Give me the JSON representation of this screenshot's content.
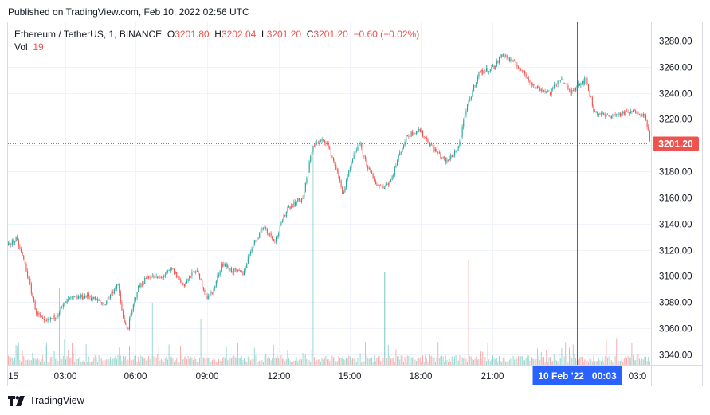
{
  "published": "Published on TradingView.com, Feb 10, 2022 02:56 UTC",
  "legend": {
    "symbol": "Ethereum / TetherUS, 1, BINANCE",
    "o_label": "O",
    "o_value": "3201.80",
    "h_label": "H",
    "h_value": "3202.04",
    "l_label": "L",
    "l_value": "3201.20",
    "c_label": "C",
    "c_value": "3201.20",
    "change": "−0.60 (−0.02%)",
    "vol_label": "Vol",
    "vol_value": "19"
  },
  "footer": {
    "brand": "TradingView",
    "logo_icon": "tradingview-logo-icon"
  },
  "colors": {
    "up": "#26a69a",
    "down": "#ef5350",
    "crosshair": "#2962ff",
    "price_tag": "#ef5350"
  },
  "chart_data": {
    "type": "candlestick",
    "title": "Ethereum / TetherUS, 1, BINANCE",
    "x_ticks": [
      ":15",
      "03:00",
      "06:00",
      "09:00",
      "12:00",
      "15:00",
      "18:00",
      "21:00",
      "03:0"
    ],
    "y_ticks": [
      "3040.00",
      "3060.00",
      "3080.00",
      "3100.00",
      "3120.00",
      "3140.00",
      "3160.00",
      "3180.00",
      "3200.00",
      "3220.00",
      "3240.00",
      "3260.00",
      "3280.00"
    ],
    "ylim": [
      3032,
      3294
    ],
    "last_price": 3201.2,
    "last_price_label": "3201.20",
    "crosshair_label": "10 Feb '22   00:03",
    "grid": true,
    "path": [
      [
        0,
        3124
      ],
      [
        10,
        3128
      ],
      [
        20,
        3111
      ],
      [
        35,
        3072
      ],
      [
        45,
        3064
      ],
      [
        60,
        3070
      ],
      [
        75,
        3082
      ],
      [
        100,
        3085
      ],
      [
        120,
        3078
      ],
      [
        137,
        3094
      ],
      [
        145,
        3064
      ],
      [
        150,
        3060
      ],
      [
        162,
        3090
      ],
      [
        175,
        3100
      ],
      [
        190,
        3098
      ],
      [
        205,
        3105
      ],
      [
        220,
        3093
      ],
      [
        235,
        3105
      ],
      [
        250,
        3083
      ],
      [
        258,
        3090
      ],
      [
        268,
        3110
      ],
      [
        280,
        3104
      ],
      [
        295,
        3102
      ],
      [
        305,
        3122
      ],
      [
        320,
        3138
      ],
      [
        335,
        3127
      ],
      [
        350,
        3152
      ],
      [
        370,
        3160
      ],
      [
        382,
        3200
      ],
      [
        398,
        3204
      ],
      [
        410,
        3185
      ],
      [
        420,
        3163
      ],
      [
        432,
        3189
      ],
      [
        440,
        3202
      ],
      [
        450,
        3185
      ],
      [
        460,
        3171
      ],
      [
        470,
        3168
      ],
      [
        480,
        3173
      ],
      [
        490,
        3192
      ],
      [
        500,
        3207
      ],
      [
        515,
        3212
      ],
      [
        530,
        3200
      ],
      [
        550,
        3187
      ],
      [
        565,
        3199
      ],
      [
        575,
        3228
      ],
      [
        590,
        3255
      ],
      [
        610,
        3260
      ],
      [
        620,
        3270
      ],
      [
        640,
        3260
      ],
      [
        660,
        3245
      ],
      [
        680,
        3240
      ],
      [
        693,
        3252
      ],
      [
        705,
        3240
      ],
      [
        715,
        3247
      ],
      [
        725,
        3250
      ],
      [
        735,
        3226
      ],
      [
        750,
        3222
      ],
      [
        770,
        3224
      ],
      [
        790,
        3226
      ],
      [
        800,
        3221
      ],
      [
        806,
        3201
      ]
    ],
    "volume_spikes": [
      [
        64,
        0.25
      ],
      [
        181,
        0.2
      ],
      [
        242,
        0.15
      ],
      [
        382,
        0.7
      ],
      [
        473,
        0.3
      ],
      [
        578,
        0.34
      ],
      [
        806,
        0.27
      ]
    ]
  }
}
